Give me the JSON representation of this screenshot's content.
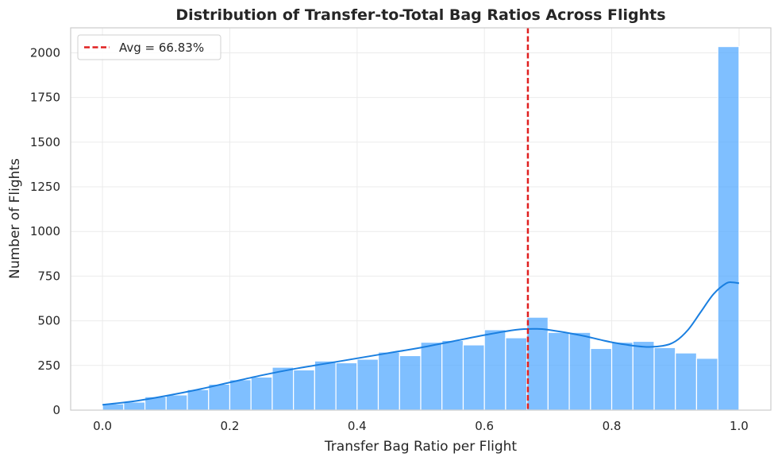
{
  "chart_data": {
    "type": "bar",
    "title": "Distribution of Transfer-to-Total Bag Ratios Across Flights",
    "xlabel": "Transfer Bag Ratio per Flight",
    "ylabel": "Number of Flights",
    "xlim": [
      -0.05,
      1.05
    ],
    "ylim": [
      0,
      2140
    ],
    "xticks": [
      0.0,
      0.2,
      0.4,
      0.6,
      0.8,
      1.0
    ],
    "xtick_labels": [
      "0.0",
      "0.2",
      "0.4",
      "0.6",
      "0.8",
      "1.0"
    ],
    "yticks": [
      0,
      250,
      500,
      750,
      1000,
      1250,
      1500,
      1750,
      2000
    ],
    "ytick_labels": [
      "0",
      "250",
      "500",
      "750",
      "1000",
      "1250",
      "1500",
      "1750",
      "2000"
    ],
    "grid": true,
    "bin_edges": [
      0.0,
      0.0333,
      0.0667,
      0.1,
      0.1333,
      0.1667,
      0.2,
      0.2333,
      0.2667,
      0.3,
      0.3333,
      0.3667,
      0.4,
      0.4333,
      0.4667,
      0.5,
      0.5333,
      0.5667,
      0.6,
      0.6333,
      0.6667,
      0.7,
      0.7333,
      0.7667,
      0.8,
      0.8333,
      0.8667,
      0.9,
      0.9333,
      0.9667,
      1.0
    ],
    "counts": [
      35,
      45,
      75,
      85,
      115,
      145,
      170,
      185,
      240,
      225,
      275,
      265,
      285,
      325,
      305,
      380,
      390,
      365,
      450,
      405,
      520,
      435,
      435,
      345,
      380,
      385,
      350,
      320,
      290,
      2035
    ],
    "bar_color": "#4da6ff",
    "kde": {
      "x": [
        0.0,
        0.05,
        0.1,
        0.15,
        0.2,
        0.25,
        0.3,
        0.35,
        0.4,
        0.45,
        0.5,
        0.55,
        0.6,
        0.65,
        0.68,
        0.7,
        0.75,
        0.8,
        0.85,
        0.88,
        0.9,
        0.92,
        0.94,
        0.96,
        0.98,
        0.99,
        1.0
      ],
      "y": [
        30,
        50,
        80,
        115,
        155,
        195,
        230,
        260,
        290,
        320,
        350,
        385,
        420,
        450,
        455,
        450,
        420,
        380,
        355,
        360,
        385,
        450,
        550,
        650,
        710,
        715,
        710
      ],
      "color": "#1a7fe0"
    },
    "mean_line": {
      "x": 0.6683,
      "label": "Avg = 66.83%",
      "color": "#e02020"
    },
    "legend_position": "top-left"
  }
}
